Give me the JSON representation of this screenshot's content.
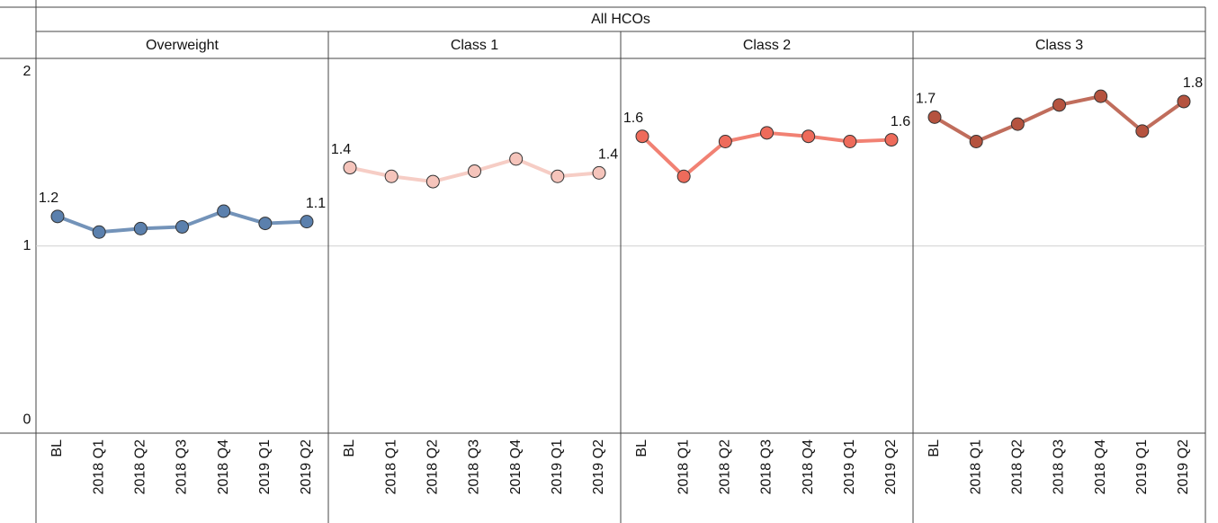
{
  "chart_data": {
    "type": "line",
    "title": "All HCOs",
    "categories": [
      "BL",
      "2018 Q1",
      "2018 Q2",
      "2018 Q3",
      "2018 Q4",
      "2019 Q1",
      "2019 Q2"
    ],
    "ylim": [
      0,
      2
    ],
    "yticks": [
      0,
      1,
      2
    ],
    "grid": true,
    "panels": [
      {
        "name": "Overweight",
        "color": "#5b80ad",
        "values": [
          1.17,
          1.08,
          1.1,
          1.11,
          1.2,
          1.13,
          1.14
        ],
        "value_labels": [
          "1.2",
          null,
          null,
          null,
          null,
          null,
          "1.1"
        ]
      },
      {
        "name": "Class 1",
        "color": "#f5c4bb",
        "values": [
          1.45,
          1.4,
          1.37,
          1.43,
          1.5,
          1.4,
          1.42
        ],
        "value_labels": [
          "1.4",
          null,
          null,
          null,
          null,
          null,
          "1.4"
        ]
      },
      {
        "name": "Class 2",
        "color": "#ee6b5b",
        "values": [
          1.63,
          1.4,
          1.6,
          1.65,
          1.63,
          1.6,
          1.61
        ],
        "value_labels": [
          "1.6",
          null,
          null,
          null,
          null,
          null,
          "1.6"
        ]
      },
      {
        "name": "Class 3",
        "color": "#b5533f",
        "values": [
          1.74,
          1.6,
          1.7,
          1.81,
          1.86,
          1.66,
          1.83
        ],
        "value_labels": [
          "1.7",
          null,
          null,
          null,
          null,
          null,
          "1.8"
        ]
      }
    ]
  }
}
